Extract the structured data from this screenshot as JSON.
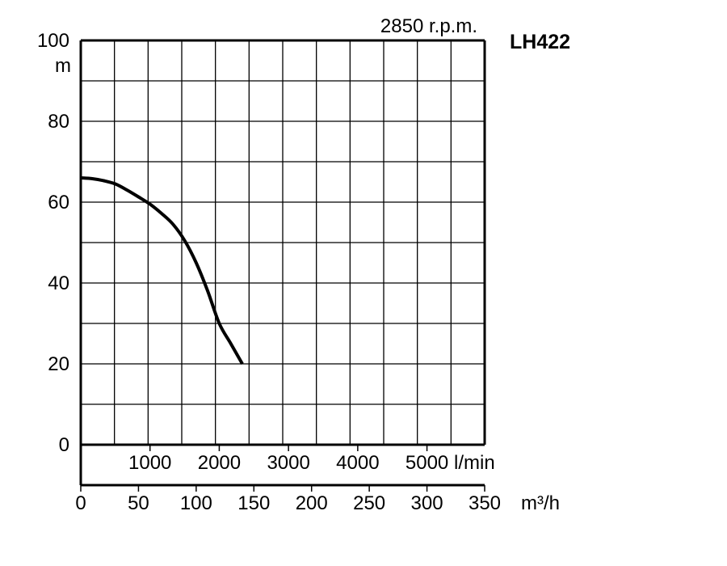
{
  "header": {
    "speed": "2850 r.p.m.",
    "model": "LH422"
  },
  "chart_data": {
    "type": "line",
    "ylabel": "m",
    "ylim": [
      0,
      100
    ],
    "y_ticks": [
      0,
      20,
      40,
      60,
      80,
      100
    ],
    "x_primary": {
      "unit": "m³/h",
      "range": [
        0,
        350
      ],
      "ticks": [
        0,
        50,
        100,
        150,
        200,
        250,
        300,
        350
      ]
    },
    "x_secondary": {
      "unit": "l/min",
      "ticks": [
        1000,
        2000,
        3000,
        4000,
        5000
      ]
    },
    "grid": true,
    "series": [
      {
        "x": [
          0,
          10,
          20,
          30,
          40,
          50,
          60,
          70,
          80,
          90,
          100,
          110,
          120,
          130,
          140
        ],
        "y": [
          66,
          65.8,
          65.3,
          64.5,
          63,
          61.3,
          59.5,
          57.2,
          54.5,
          50.5,
          45,
          38,
          30,
          25,
          20
        ]
      }
    ]
  }
}
